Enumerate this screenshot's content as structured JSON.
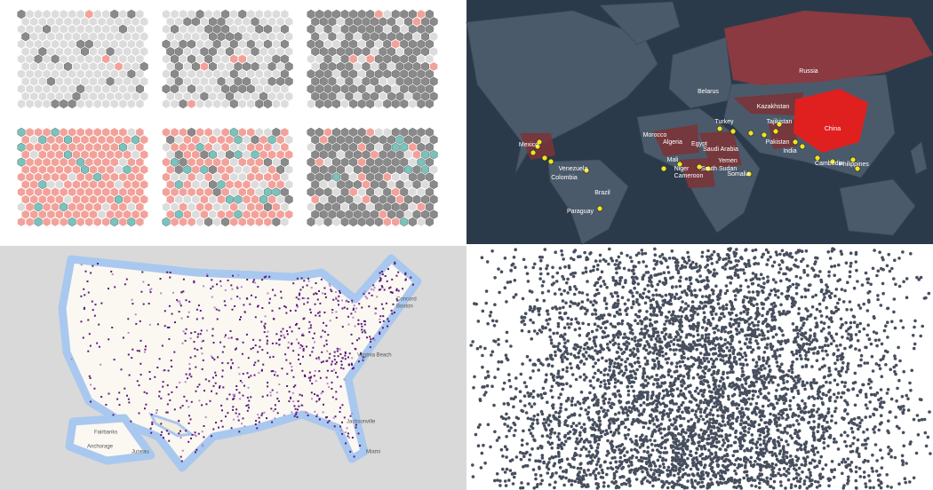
{
  "world_map": {
    "labels": [
      "Russia",
      "Belarus",
      "Kazakhstan",
      "Turkey",
      "Tajikistan",
      "Morocco",
      "Algeria",
      "China",
      "Mexico",
      "Egypt",
      "Saudi Arabia",
      "Pakistan",
      "Mali",
      "India",
      "Yemen",
      "Venezuela",
      "Niger",
      "South Sudan",
      "Cambodia",
      "Philippines",
      "Cameroon",
      "Somalia",
      "Colombia",
      "Brazil",
      "Paraguay"
    ]
  },
  "us_map": {
    "labels": [
      "Concord",
      "Boston",
      "Virginia Beach",
      "Jacksonville",
      "Miami",
      "Fairbanks",
      "Anchorage",
      "Juneau"
    ]
  }
}
